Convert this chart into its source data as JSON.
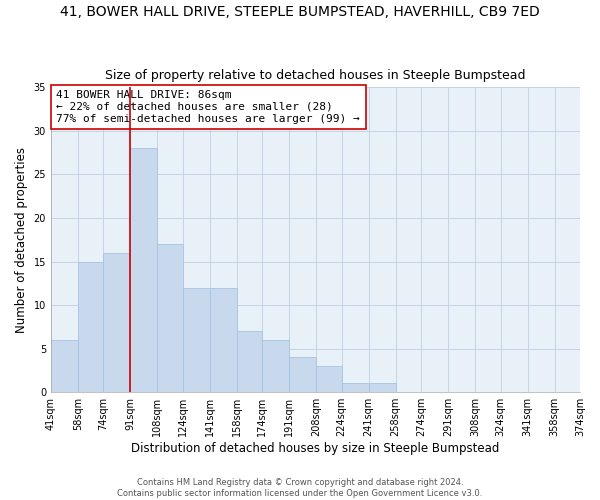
{
  "title": "41, BOWER HALL DRIVE, STEEPLE BUMPSTEAD, HAVERHILL, CB9 7ED",
  "subtitle": "Size of property relative to detached houses in Steeple Bumpstead",
  "xlabel": "Distribution of detached houses by size in Steeple Bumpstead",
  "ylabel": "Number of detached properties",
  "bar_edges": [
    41,
    58,
    74,
    91,
    108,
    124,
    141,
    158,
    174,
    191,
    208,
    224,
    241,
    258,
    274,
    291,
    308,
    324,
    341,
    358,
    374
  ],
  "bar_heights": [
    6,
    15,
    16,
    28,
    17,
    12,
    12,
    7,
    6,
    4,
    3,
    1,
    1,
    0,
    0,
    0,
    0,
    0,
    0,
    0
  ],
  "bar_color": "#c8d9ee",
  "bar_edge_color": "#a8c4e0",
  "property_line_x": 91,
  "property_line_color": "#cc0000",
  "annotation_text": "41 BOWER HALL DRIVE: 86sqm\n← 22% of detached houses are smaller (28)\n77% of semi-detached houses are larger (99) →",
  "annotation_box_edgecolor": "#cc0000",
  "annotation_fontsize": 8,
  "ylim": [
    0,
    35
  ],
  "yticks": [
    0,
    5,
    10,
    15,
    20,
    25,
    30,
    35
  ],
  "footer": "Contains HM Land Registry data © Crown copyright and database right 2024.\nContains public sector information licensed under the Open Government Licence v3.0.",
  "ax_facecolor": "#e8f0f8",
  "background_color": "#ffffff",
  "title_fontsize": 10,
  "subtitle_fontsize": 9,
  "xlabel_fontsize": 8.5,
  "ylabel_fontsize": 8.5,
  "tick_label_fontsize": 7,
  "footer_fontsize": 6
}
